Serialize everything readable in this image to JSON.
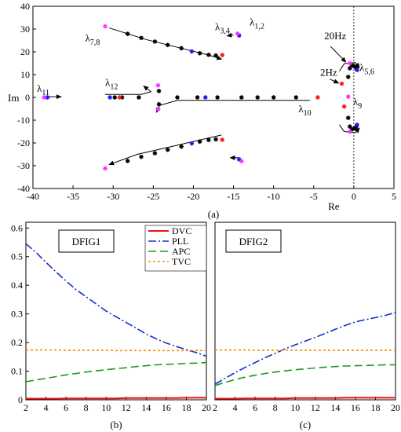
{
  "chart_data": [
    {
      "type": "scatter",
      "caption": "(a)",
      "xlabel": "Re",
      "ylabel": "Im",
      "xlim": [
        -40,
        5
      ],
      "ylim": [
        -40,
        40
      ],
      "xticks": [
        -40,
        -35,
        -30,
        -25,
        -20,
        -15,
        -10,
        -5,
        0,
        5
      ],
      "yticks": [
        40,
        30,
        20,
        10,
        0,
        -10,
        -20,
        -30,
        -40
      ],
      "annotations": [
        {
          "text": "λ7,8",
          "base": "λ",
          "sub": "7,8",
          "x": -33.5,
          "y": 24.5
        },
        {
          "text": "λ3,4",
          "base": "λ",
          "sub": "3,4",
          "x": -17.3,
          "y": 29.5
        },
        {
          "text": "λ1,2",
          "base": "λ",
          "sub": "1,2",
          "x": -13.0,
          "y": 31.5
        },
        {
          "text": "λ11",
          "base": "λ",
          "sub": "11",
          "x": -39.5,
          "y": 2.5
        },
        {
          "text": "λ12",
          "base": "λ",
          "sub": "12",
          "x": -31.0,
          "y": 5.0
        },
        {
          "text": "λ10",
          "base": "λ",
          "sub": "10",
          "x": -6.9,
          "y": -6.5
        },
        {
          "text": "λ5,6",
          "base": "λ",
          "sub": "5,6",
          "x": 0.7,
          "y": 11.5
        },
        {
          "text": "λ9",
          "base": "λ",
          "sub": "9",
          "x": -0.1,
          "y": -3.5
        },
        {
          "text": "20Hz",
          "base": "20Hz",
          "sub": "",
          "x": -3.7,
          "y": 25.5
        },
        {
          "text": "2Hz",
          "base": "2Hz",
          "sub": "",
          "x": -4.2,
          "y": 9.5
        }
      ],
      "series": [
        {
          "color": "#000000",
          "marker": "asterisk",
          "points": [
            [
              -28.2,
              27.9
            ],
            [
              -26.5,
              26.1
            ],
            [
              -24.8,
              24.5
            ],
            [
              -23.2,
              23.0
            ],
            [
              -21.5,
              21.6
            ],
            [
              -19.2,
              19.4
            ],
            [
              -18.1,
              18.7
            ],
            [
              -17.2,
              18.4
            ],
            [
              -28.2,
              -27.9
            ],
            [
              -26.5,
              -26.1
            ],
            [
              -24.8,
              -24.5
            ],
            [
              -23.2,
              -23.0
            ],
            [
              -21.5,
              -21.6
            ],
            [
              -19.2,
              -19.4
            ],
            [
              -18.1,
              -18.7
            ],
            [
              -17.2,
              -18.4
            ],
            [
              -29.8,
              0
            ],
            [
              -28.9,
              0
            ],
            [
              -26.8,
              0
            ],
            [
              -24.3,
              2.8
            ],
            [
              -24.3,
              -3.0
            ],
            [
              -22.0,
              0
            ],
            [
              -19.5,
              0
            ],
            [
              -17.0,
              0
            ],
            [
              -14.0,
              0
            ],
            [
              -12.0,
              0
            ],
            [
              -10.0,
              0
            ],
            [
              -7.2,
              0
            ],
            [
              -0.7,
              9.0
            ],
            [
              -0.5,
              12.8
            ],
            [
              -0.2,
              14.0
            ],
            [
              0.1,
              13.6
            ],
            [
              0.3,
              13.0
            ],
            [
              -0.7,
              -9.0
            ],
            [
              -0.5,
              -12.8
            ],
            [
              -0.2,
              -14.0
            ],
            [
              0.1,
              -13.6
            ],
            [
              0.3,
              -13.0
            ]
          ]
        },
        {
          "color": "#1a1aff",
          "marker": "asterisk",
          "points": [
            [
              -20.2,
              20.2
            ],
            [
              -20.2,
              -20.2
            ],
            [
              -38.2,
              0
            ],
            [
              -30.4,
              0
            ],
            [
              -18.5,
              0
            ],
            [
              0.4,
              12.0
            ],
            [
              0.4,
              -12.0
            ],
            [
              -14.3,
              27.2
            ],
            [
              -14.3,
              -27.2
            ]
          ]
        },
        {
          "color": "#ff1a1a",
          "marker": "asterisk",
          "points": [
            [
              -16.4,
              18.6
            ],
            [
              -16.4,
              -18.6
            ],
            [
              -29.2,
              0
            ],
            [
              -4.5,
              0
            ],
            [
              -1.5,
              6.0
            ],
            [
              -1.2,
              -4.0
            ]
          ]
        },
        {
          "color": "#ff33ff",
          "marker": "asterisk",
          "points": [
            [
              -31.0,
              31.2
            ],
            [
              -31.0,
              -31.2
            ],
            [
              -38.6,
              0
            ],
            [
              -24.4,
              5.3
            ],
            [
              -24.4,
              -5.2
            ],
            [
              -14.5,
              28.0
            ],
            [
              -14.0,
              -28.0
            ],
            [
              -0.5,
              15.0
            ],
            [
              -0.5,
              -15.0
            ],
            [
              -0.7,
              0.3
            ]
          ]
        }
      ],
      "arrows": [
        {
          "path": [
            [
              -30.5,
              30.5
            ],
            [
              -26.0,
              25.5
            ],
            [
              -22.0,
              22.0
            ],
            [
              -18.0,
              18.5
            ],
            [
              -16.5,
              16.8
            ]
          ]
        },
        {
          "path": [
            [
              -15.0,
              27.5
            ],
            [
              -15.8,
              27.0
            ]
          ]
        },
        {
          "path": [
            [
              -38.8,
              0.3
            ],
            [
              -36.5,
              0.3
            ]
          ]
        },
        {
          "path": [
            [
              -31.0,
              1.3
            ],
            [
              -26.5,
              1.3
            ],
            [
              -25.3,
              2.5
            ],
            [
              -26.2,
              5.0
            ]
          ]
        },
        {
          "path": [
            [
              -5.5,
              -1.3
            ],
            [
              -22.0,
              -1.3
            ],
            [
              -24.2,
              -3.5
            ],
            [
              -24.6,
              -6.5
            ]
          ]
        },
        {
          "path": [
            [
              -16.5,
              -16.5
            ],
            [
              -22.0,
              -21.0
            ],
            [
              -27.0,
              -25.0
            ],
            [
              -30.5,
              -29.5
            ]
          ]
        },
        {
          "path": [
            [
              -14.3,
              -26.5
            ],
            [
              -15.4,
              -26.5
            ]
          ]
        },
        {
          "path": [
            [
              -1.8,
              11.5
            ],
            [
              -1.2,
              14.8
            ],
            [
              0.2,
              15.3
            ],
            [
              0.7,
              13.0
            ]
          ]
        },
        {
          "path": [
            [
              -1.8,
              -12.0
            ],
            [
              -1.2,
              -15.0
            ],
            [
              0.2,
              -15.5
            ],
            [
              0.7,
              -13.5
            ]
          ]
        },
        {
          "path": [
            [
              -2.9,
              22.4
            ],
            [
              -1.0,
              15.5
            ]
          ]
        },
        {
          "path": [
            [
              -3.0,
              8.0
            ],
            [
              -1.9,
              6.3
            ]
          ]
        }
      ]
    },
    {
      "type": "line",
      "caption": "(b)",
      "title": "DFIG1",
      "xlim": [
        2,
        20
      ],
      "ylim": [
        0,
        0.62
      ],
      "xticks": [
        2,
        4,
        6,
        8,
        10,
        12,
        14,
        16,
        18,
        20
      ],
      "yticks": [
        0,
        0.1,
        0.2,
        0.3,
        0.4,
        0.5,
        0.6
      ],
      "x": [
        2,
        3,
        4,
        5,
        6,
        7,
        8,
        9,
        10,
        11,
        12,
        13,
        14,
        15,
        16,
        17,
        18,
        19,
        20
      ],
      "series": [
        {
          "name": "DVC",
          "color": "#ee1111",
          "dash": "",
          "values": [
            0.004,
            0.004,
            0.004,
            0.004,
            0.005,
            0.005,
            0.005,
            0.005,
            0.005,
            0.005,
            0.006,
            0.006,
            0.006,
            0.006,
            0.006,
            0.006,
            0.007,
            0.007,
            0.007
          ]
        },
        {
          "name": "PLL",
          "color": "#1530c8",
          "dash": "10,3,2,3",
          "values": [
            0.545,
            0.515,
            0.48,
            0.447,
            0.415,
            0.385,
            0.36,
            0.335,
            0.31,
            0.29,
            0.27,
            0.25,
            0.23,
            0.213,
            0.198,
            0.186,
            0.175,
            0.165,
            0.152
          ]
        },
        {
          "name": "APC",
          "color": "#1a9a1a",
          "dash": "10,5",
          "values": [
            0.063,
            0.069,
            0.075,
            0.081,
            0.087,
            0.092,
            0.097,
            0.101,
            0.105,
            0.109,
            0.112,
            0.116,
            0.119,
            0.122,
            0.124,
            0.125,
            0.127,
            0.128,
            0.13
          ]
        },
        {
          "name": "TVC",
          "color": "#ff8a00",
          "dash": "3,3",
          "values": [
            0.174,
            0.174,
            0.174,
            0.174,
            0.173,
            0.173,
            0.173,
            0.173,
            0.173,
            0.172,
            0.172,
            0.172,
            0.172,
            0.172,
            0.172,
            0.172,
            0.172,
            0.172,
            0.172
          ]
        }
      ],
      "legend": {
        "placement": "top-right"
      }
    },
    {
      "type": "line",
      "caption": "(c)",
      "title": "DFIG2",
      "xlim": [
        2,
        20
      ],
      "ylim": [
        0,
        0.62
      ],
      "xticks": [
        2,
        4,
        6,
        8,
        10,
        12,
        14,
        16,
        18,
        20
      ],
      "yticks": [],
      "x": [
        2,
        3,
        4,
        5,
        6,
        7,
        8,
        9,
        10,
        11,
        12,
        13,
        14,
        15,
        16,
        17,
        18,
        19,
        20
      ],
      "series": [
        {
          "name": "DVC",
          "color": "#ee1111",
          "dash": "",
          "values": [
            0.004,
            0.004,
            0.004,
            0.005,
            0.005,
            0.005,
            0.005,
            0.005,
            0.006,
            0.006,
            0.006,
            0.006,
            0.006,
            0.007,
            0.007,
            0.007,
            0.007,
            0.007,
            0.007
          ]
        },
        {
          "name": "PLL",
          "color": "#1530c8",
          "dash": "10,3,2,3",
          "values": [
            0.055,
            0.075,
            0.095,
            0.113,
            0.13,
            0.147,
            0.162,
            0.178,
            0.192,
            0.205,
            0.218,
            0.232,
            0.246,
            0.26,
            0.272,
            0.28,
            0.287,
            0.295,
            0.305
          ]
        },
        {
          "name": "APC",
          "color": "#1a9a1a",
          "dash": "10,5",
          "values": [
            0.05,
            0.061,
            0.071,
            0.079,
            0.086,
            0.092,
            0.097,
            0.101,
            0.105,
            0.108,
            0.111,
            0.114,
            0.116,
            0.118,
            0.119,
            0.12,
            0.121,
            0.122,
            0.122
          ]
        },
        {
          "name": "TVC",
          "color": "#ff8a00",
          "dash": "3,3",
          "values": [
            0.174,
            0.174,
            0.174,
            0.174,
            0.173,
            0.173,
            0.173,
            0.173,
            0.173,
            0.173,
            0.173,
            0.173,
            0.173,
            0.173,
            0.173,
            0.173,
            0.173,
            0.173,
            0.173
          ]
        }
      ]
    }
  ]
}
